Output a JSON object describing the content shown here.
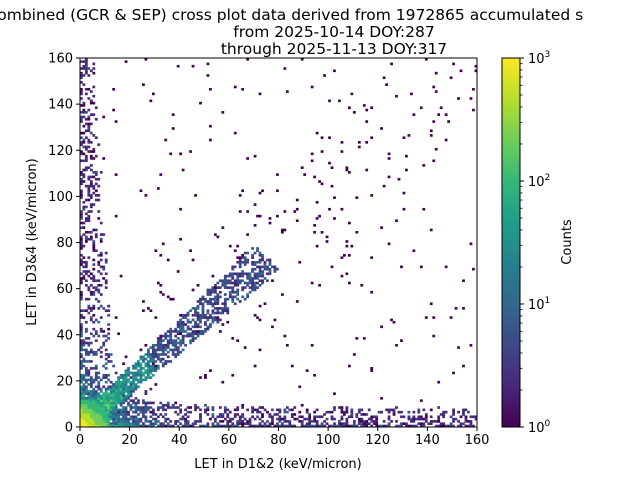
{
  "title_lines": [
    "combined (GCR & SEP) cross plot data derived from 1972865 accumulated s",
    "from 2025-10-14 DOY:287",
    "through 2025-11-13 DOY:317"
  ],
  "chart_data": {
    "type": "heatmap",
    "title": "combined (GCR & SEP) cross plot data derived from 1972865 accumulated s from 2025-10-14 DOY:287 through 2025-11-13 DOY:317",
    "xlabel": "LET in D1&2 (keV/micron)",
    "ylabel": "LET in D3&4 (keV/micron)",
    "xlim": [
      0,
      160
    ],
    "ylim": [
      0,
      160
    ],
    "xticks": [
      0,
      20,
      40,
      60,
      80,
      100,
      120,
      140,
      160
    ],
    "yticks": [
      0,
      20,
      40,
      60,
      80,
      100,
      120,
      140,
      160
    ],
    "colorbar": {
      "label": "Counts",
      "scale": "log",
      "range": [
        1,
        1000
      ],
      "ticks": [
        "10^0",
        "10^1",
        "10^2",
        "10^3"
      ],
      "colormap": "viridis"
    },
    "grid": false,
    "features": [
      {
        "name": "low-LET core",
        "x": [
          0,
          10
        ],
        "y": [
          0,
          10
        ],
        "counts": 1000
      },
      {
        "name": "diagonal band",
        "x": [
          10,
          75
        ],
        "y": [
          10,
          75
        ],
        "counts": 5
      },
      {
        "name": "y-axis tail",
        "x": [
          0,
          5
        ],
        "y": [
          0,
          160
        ],
        "counts": 2
      },
      {
        "name": "x-axis tail",
        "x": [
          0,
          160
        ],
        "y": [
          0,
          8
        ],
        "counts": 2
      }
    ]
  },
  "colors": {
    "viridis": [
      "#440154",
      "#482878",
      "#3e4989",
      "#31688e",
      "#26828e",
      "#1f9e89",
      "#35b779",
      "#6ece58",
      "#b5de2b",
      "#fde725"
    ]
  }
}
